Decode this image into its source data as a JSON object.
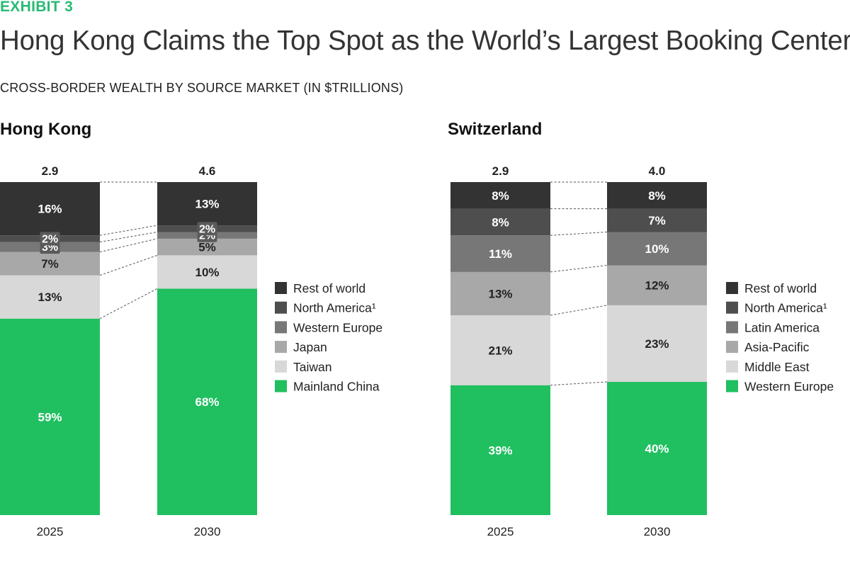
{
  "header": {
    "exhibit": "EXHIBIT 3",
    "title": "Hong Kong Claims the Top Spot as the World’s Largest Booking Center",
    "subtitle": "CROSS-BORDER WEALTH BY SOURCE MARKET (IN $TRILLIONS)"
  },
  "colors": {
    "rest_of_world": "#333333",
    "north_america": "#4e4e4e",
    "third_tier": "#777777",
    "fourth_tier": "#a8a8a8",
    "fifth_tier": "#d8d8d8",
    "green": "#20bf60",
    "segment_label_dark": "#ffffff",
    "segment_label_light": "#222222"
  },
  "chart_data": [
    {
      "type": "bar",
      "stacked": true,
      "normalized": true,
      "title": "Hong Kong",
      "categories": [
        "2025",
        "2030"
      ],
      "totals": [
        "2.9",
        "4.6"
      ],
      "series": [
        {
          "name": "Mainland China",
          "values": [
            59,
            68
          ],
          "labels": [
            "59%",
            "68%"
          ],
          "color": "#20bf60"
        },
        {
          "name": "Taiwan",
          "values": [
            13,
            10
          ],
          "labels": [
            "13%",
            "10%"
          ],
          "color": "#d8d8d8"
        },
        {
          "name": "Japan",
          "values": [
            7,
            5
          ],
          "labels": [
            "7%",
            "5%"
          ],
          "color": "#a8a8a8"
        },
        {
          "name": "Western Europe",
          "values": [
            3,
            2
          ],
          "labels": [
            "3%",
            "2%"
          ],
          "color": "#777777"
        },
        {
          "name": "North America¹",
          "values": [
            2,
            2
          ],
          "labels": [
            "2%",
            "2%"
          ],
          "color": "#4e4e4e"
        },
        {
          "name": "Rest of world",
          "values": [
            16,
            13
          ],
          "labels": [
            "16%",
            "13%"
          ],
          "color": "#333333"
        }
      ],
      "legend": [
        "Rest of world",
        "North America¹",
        "Western Europe",
        "Japan",
        "Taiwan",
        "Mainland China"
      ],
      "legend_position": "right"
    },
    {
      "type": "bar",
      "stacked": true,
      "normalized": true,
      "title": "Switzerland",
      "categories": [
        "2025",
        "2030"
      ],
      "totals": [
        "2.9",
        "4.0"
      ],
      "series": [
        {
          "name": "Western Europe",
          "values": [
            39,
            40
          ],
          "labels": [
            "39%",
            "40%"
          ],
          "color": "#20bf60"
        },
        {
          "name": "Middle East",
          "values": [
            21,
            23
          ],
          "labels": [
            "21%",
            "23%"
          ],
          "color": "#d8d8d8"
        },
        {
          "name": "Asia-Pacific",
          "values": [
            13,
            12
          ],
          "labels": [
            "13%",
            "12%"
          ],
          "color": "#a8a8a8"
        },
        {
          "name": "Latin America",
          "values": [
            11,
            10
          ],
          "labels": [
            "11%",
            "10%"
          ],
          "color": "#777777"
        },
        {
          "name": "North America¹",
          "values": [
            8,
            7
          ],
          "labels": [
            "8%",
            "7%"
          ],
          "color": "#4e4e4e"
        },
        {
          "name": "Rest of world",
          "values": [
            8,
            8
          ],
          "labels": [
            "8%",
            "8%"
          ],
          "color": "#333333"
        }
      ],
      "legend": [
        "Rest of world",
        "North America¹",
        "Latin America",
        "Asia-Pacific",
        "Middle East",
        "Western Europe"
      ],
      "legend_position": "right"
    }
  ]
}
